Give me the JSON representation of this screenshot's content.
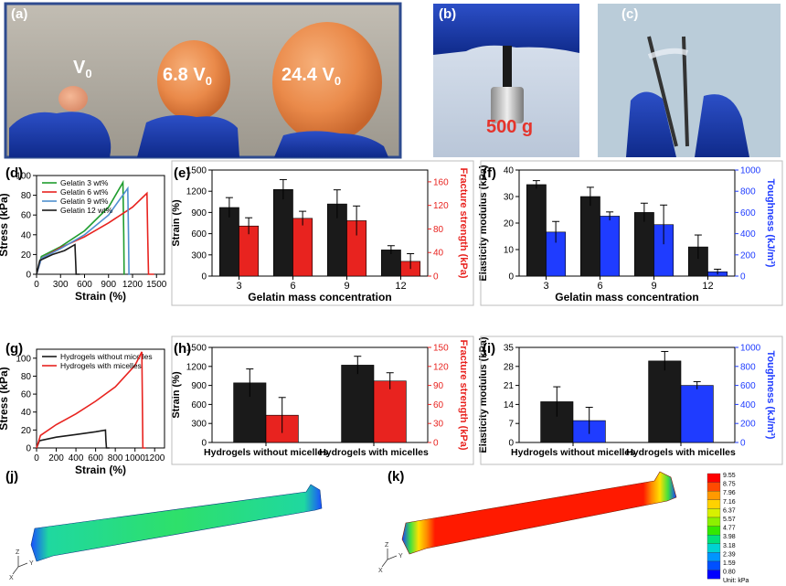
{
  "panel_labels": {
    "a": "(a)",
    "b": "(b)",
    "c": "(c)",
    "d": "(d)",
    "e": "(e)",
    "f": "(f)",
    "g": "(g)",
    "h": "(h)",
    "i": "(i)",
    "j": "(j)",
    "k": "(k)"
  },
  "photo_a": {
    "v0": "V",
    "v0_sub": "0",
    "v1": "6.8 V",
    "v1_sub": "0",
    "v2": "24.4 V",
    "v2_sub": "0",
    "border_color": "#2e4b8f"
  },
  "photo_b": {
    "weight_label": "500 g",
    "weight_color": "#e5342c"
  },
  "colors": {
    "black": "#1a1a1a",
    "red": "#e8231f",
    "blue": "#1f3cff",
    "green": "#1f9d2e",
    "steel": "#4f8fcf"
  },
  "chart_data": [
    {
      "id": "d",
      "type": "line",
      "xlabel": "Strain (%)",
      "ylabel": "Stress (kPa)",
      "xlim": [
        0,
        1600
      ],
      "ylim": [
        0,
        100
      ],
      "xticks": [
        0,
        300,
        600,
        900,
        1200,
        1500
      ],
      "yticks": [
        0,
        20,
        40,
        60,
        80,
        100
      ],
      "legend": "top-left",
      "series": [
        {
          "name": "Gelatin 3 wt%",
          "color": "#1f9d2e",
          "x": [
            0,
            60,
            300,
            600,
            900,
            1080,
            1090,
            1095,
            1100
          ],
          "y": [
            0,
            18,
            28,
            44,
            68,
            93,
            40,
            0,
            0
          ]
        },
        {
          "name": "Gelatin 6 wt%",
          "color": "#e8231f",
          "x": [
            0,
            60,
            300,
            600,
            900,
            1200,
            1380,
            1390,
            1400,
            1470
          ],
          "y": [
            0,
            16,
            27,
            38,
            52,
            68,
            82,
            40,
            0,
            0
          ]
        },
        {
          "name": "Gelatin 9 wt%",
          "color": "#4f8fcf",
          "x": [
            0,
            60,
            300,
            600,
            900,
            1140,
            1150,
            1155,
            1170
          ],
          "y": [
            0,
            16,
            26,
            40,
            60,
            87,
            40,
            0,
            0
          ]
        },
        {
          "name": "Gelatin 12 wt%",
          "color": "#1a1a1a",
          "x": [
            0,
            40,
            200,
            350,
            480,
            490,
            495,
            540
          ],
          "y": [
            0,
            14,
            20,
            24,
            30,
            10,
            0,
            0
          ]
        }
      ]
    },
    {
      "id": "e",
      "type": "bar",
      "xlabel": "Gelatin mass concentration",
      "ylabel": "Strain (%)",
      "y2label": "Fracture strength (kPa)",
      "categories": [
        "3",
        "6",
        "9",
        "12"
      ],
      "ylim": [
        0,
        1500
      ],
      "yticks": [
        0,
        300,
        600,
        900,
        1200,
        1500
      ],
      "y2lim": [
        0,
        180
      ],
      "y2ticks": [
        0,
        40,
        80,
        120,
        160
      ],
      "series": [
        {
          "axis": "left",
          "color": "#1a1a1a",
          "values": [
            970,
            1225,
            1020,
            370
          ],
          "errors": [
            140,
            140,
            200,
            60
          ]
        },
        {
          "axis": "right",
          "color": "#e8231f",
          "values": [
            85,
            98,
            94,
            25
          ],
          "errors": [
            14,
            12,
            25,
            13
          ]
        }
      ]
    },
    {
      "id": "f",
      "type": "bar",
      "xlabel": "Gelatin mass concentration",
      "ylabel": "Elasticity modulus (kPa)",
      "y2label": "Toughness (kJ/m³)",
      "categories": [
        "3",
        "6",
        "9",
        "12"
      ],
      "ylim": [
        0,
        40
      ],
      "yticks": [
        0,
        10,
        20,
        30,
        40
      ],
      "y2lim": [
        0,
        1000
      ],
      "y2ticks": [
        0,
        200,
        400,
        600,
        800,
        1000
      ],
      "series": [
        {
          "axis": "left",
          "color": "#1a1a1a",
          "values": [
            34.5,
            30,
            24,
            11
          ],
          "errors": [
            1.5,
            3.5,
            3.5,
            4.5
          ]
        },
        {
          "axis": "right",
          "color": "#1f3cff",
          "values": [
            415,
            565,
            485,
            40
          ],
          "errors": [
            100,
            40,
            185,
            25
          ]
        }
      ]
    },
    {
      "id": "g",
      "type": "line",
      "xlabel": "Strain (%)",
      "ylabel": "Stress (kPa)",
      "xlim": [
        0,
        1300
      ],
      "ylim": [
        0,
        110
      ],
      "xticks": [
        0,
        200,
        400,
        600,
        800,
        1000,
        1200
      ],
      "yticks": [
        0,
        20,
        40,
        60,
        80,
        100
      ],
      "legend": "top-left",
      "series": [
        {
          "name": "Hydrogels without micelles",
          "color": "#1a1a1a",
          "x": [
            0,
            30,
            200,
            400,
            600,
            700,
            705,
            710,
            740
          ],
          "y": [
            0,
            8,
            12,
            15,
            18,
            20,
            8,
            0,
            0
          ]
        },
        {
          "name": "Hydrogels with micelles",
          "color": "#e8231f",
          "x": [
            0,
            40,
            200,
            400,
            600,
            800,
            1000,
            1070,
            1075,
            1080,
            1110
          ],
          "y": [
            0,
            14,
            26,
            38,
            52,
            68,
            92,
            107,
            50,
            0,
            0
          ]
        }
      ]
    },
    {
      "id": "h",
      "type": "bar",
      "ylabel": "Strain (%)",
      "y2label": "Fracture strength (kPa)",
      "categories": [
        "Hydrogels without micelles",
        "Hydrogels with micelles"
      ],
      "ylim": [
        0,
        1500
      ],
      "yticks": [
        0,
        300,
        600,
        900,
        1200,
        1500
      ],
      "y2lim": [
        0,
        150
      ],
      "y2ticks": [
        0,
        30,
        60,
        90,
        120,
        150
      ],
      "series": [
        {
          "axis": "left",
          "color": "#1a1a1a",
          "values": [
            940,
            1220
          ],
          "errors": [
            220,
            140
          ]
        },
        {
          "axis": "right",
          "color": "#e8231f",
          "values": [
            43,
            97
          ],
          "errors": [
            28,
            13
          ]
        }
      ]
    },
    {
      "id": "i",
      "type": "bar",
      "ylabel": "Elasticity modulus (kPa)",
      "y2label": "Toughness (kJ/m³)",
      "categories": [
        "Hydrogels without micelles",
        "Hydrogels with micelles"
      ],
      "ylim": [
        0,
        35
      ],
      "yticks": [
        0,
        7,
        14,
        21,
        28,
        35
      ],
      "y2lim": [
        0,
        1000
      ],
      "y2ticks": [
        0,
        200,
        400,
        600,
        800,
        1000
      ],
      "series": [
        {
          "axis": "left",
          "color": "#1a1a1a",
          "values": [
            15,
            30
          ],
          "errors": [
            5.5,
            3.5
          ]
        },
        {
          "axis": "right",
          "color": "#1f3cff",
          "values": [
            230,
            600
          ],
          "errors": [
            140,
            40
          ]
        }
      ]
    }
  ],
  "colorbar": {
    "values": [
      "9.55",
      "8.75",
      "7.96",
      "7.16",
      "6.37",
      "5.57",
      "4.77",
      "3.98",
      "3.18",
      "2.39",
      "1.59",
      "0.80"
    ],
    "colors": [
      "#ff0000",
      "#ff4a00",
      "#ff9a00",
      "#ffd200",
      "#d8f000",
      "#8cf000",
      "#33e800",
      "#00e07a",
      "#00d2d2",
      "#0095ff",
      "#0050ff",
      "#0000ff"
    ],
    "unit": "Unit: kPa"
  },
  "axis_triads": {
    "z": "Z",
    "y": "Y",
    "x": "X"
  }
}
